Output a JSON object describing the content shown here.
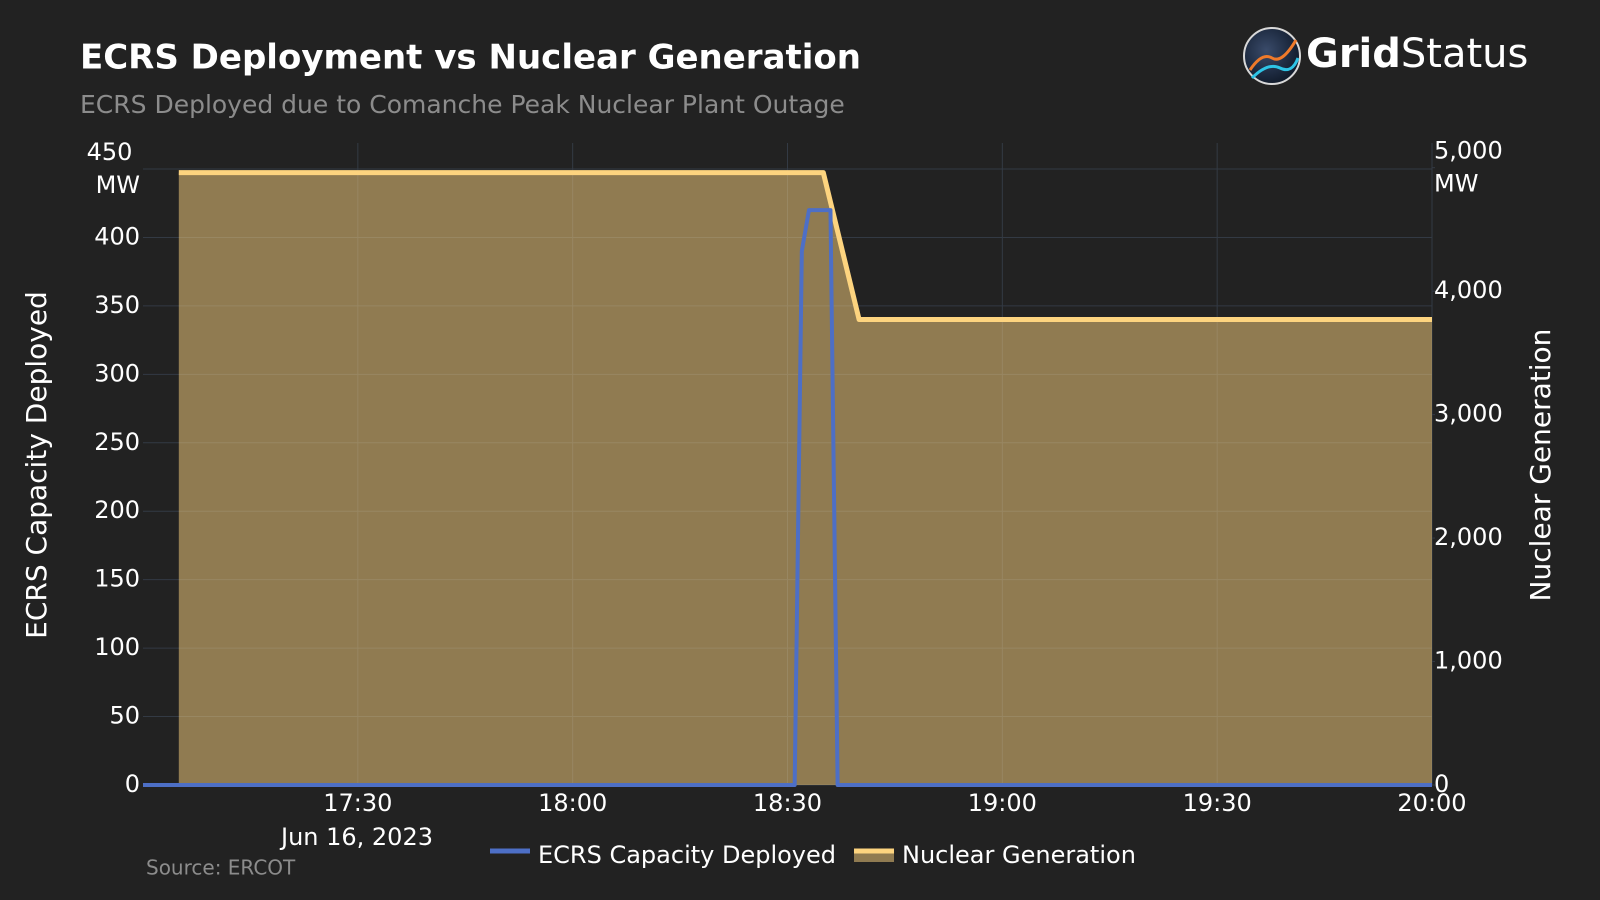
{
  "chart_data": {
    "type": "line",
    "title": "ECRS Deployment vs Nuclear Generation",
    "subtitle": "ECRS Deployed due to Comanche Peak Nuclear Plant Outage",
    "source": "Source: ERCOT",
    "logo_bold": "Grid",
    "logo_regular": "Status",
    "y_label": "ECRS Capacity Deployed",
    "y2_label": "Nuclear Generation",
    "x_date_label": "Jun 16, 2023",
    "xlim": [
      "17:00",
      "20:00"
    ],
    "xticks": [
      "17:30",
      "18:00",
      "18:30",
      "19:00",
      "19:30",
      "20:00"
    ],
    "ylim": [
      0,
      469
    ],
    "yticks": [
      0,
      50,
      100,
      150,
      200,
      250,
      300,
      350,
      400,
      {
        "value": 450,
        "label": "450 MW"
      }
    ],
    "y2lim": [
      0,
      5200
    ],
    "y2ticks": [
      0,
      {
        "value": 1000,
        "label": "1,000"
      },
      {
        "value": 2000,
        "label": "2,000"
      },
      {
        "value": 3000,
        "label": "3,000"
      },
      {
        "value": 4000,
        "label": "4,000"
      },
      {
        "value": 5000,
        "label": "5,000 MW"
      }
    ],
    "grid": true,
    "legend": "bottom",
    "series": [
      {
        "name": "ECRS Capacity Deployed",
        "color": "#4d6fc6",
        "x": [
          "17:00",
          "18:31",
          "18:32",
          "18:33",
          "18:36",
          "18:37",
          "20:00"
        ],
        "values": [
          0,
          0,
          390,
          420,
          420,
          0,
          0
        ]
      },
      {
        "name": "Nuclear Generation",
        "color": "#fdd47f",
        "axis": "y2",
        "fill": true,
        "x": [
          "17:05",
          "18:35",
          "18:40",
          "20:00"
        ],
        "values": [
          4960,
          4960,
          3770,
          3770
        ]
      }
    ]
  }
}
